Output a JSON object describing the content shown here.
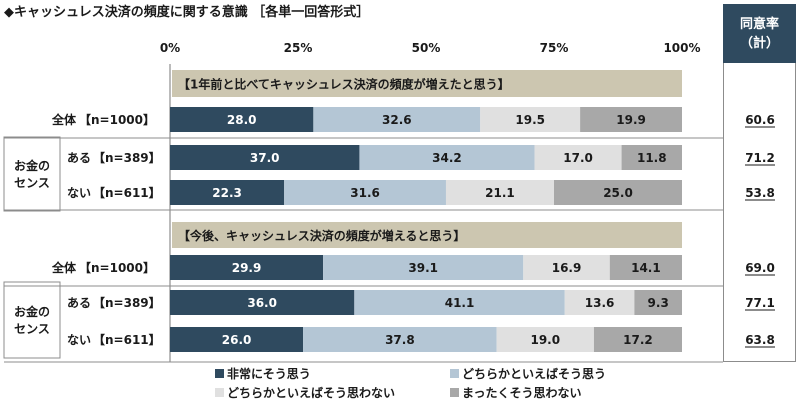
{
  "title": "◆キャッシュレス決済の頻度に関する意識 ［各単一回答形式］",
  "agree_header": {
    "line1": "同意率",
    "line2": "（計）"
  },
  "chart_data": {
    "type": "bar",
    "orientation": "horizontal-stacked-100",
    "x_ticks": [
      "0%",
      "25%",
      "50%",
      "75%",
      "100%"
    ],
    "xlim": [
      0,
      100
    ],
    "series_names": [
      "非常にそう思う",
      "どちらかといえばそう思う",
      "どちらかといえばそう思わない",
      "まったくそう思わない"
    ],
    "colors": [
      "#2f4a5f",
      "#b4c6d5",
      "#e0e0e0",
      "#a8a8a8"
    ],
    "group_label": "お金のセンス",
    "sections": [
      {
        "header": "【1年前と比べてキャッシュレス決済の頻度が増えたと思う】",
        "rows": [
          {
            "sublabel": "全体",
            "n": "【n=1000】",
            "values": [
              28.0,
              32.6,
              19.5,
              19.9
            ],
            "agree": "60.6"
          },
          {
            "sublabel": "ある",
            "n": "【n=389】",
            "values": [
              37.0,
              34.2,
              17.0,
              11.8
            ],
            "agree": "71.2"
          },
          {
            "sublabel": "ない",
            "n": "【n=611】",
            "values": [
              22.3,
              31.6,
              21.1,
              25.0
            ],
            "agree": "53.8"
          }
        ]
      },
      {
        "header": "【今後、キャッシュレス決済の頻度が増えると思う】",
        "rows": [
          {
            "sublabel": "全体",
            "n": "【n=1000】",
            "values": [
              29.9,
              39.1,
              16.9,
              14.1
            ],
            "agree": "69.0"
          },
          {
            "sublabel": "ある",
            "n": "【n=389】",
            "values": [
              36.0,
              41.1,
              13.6,
              9.3
            ],
            "agree": "77.1"
          },
          {
            "sublabel": "ない",
            "n": "【n=611】",
            "values": [
              26.0,
              37.8,
              19.0,
              17.2
            ],
            "agree": "63.8"
          }
        ]
      }
    ],
    "legend_position": "bottom"
  }
}
